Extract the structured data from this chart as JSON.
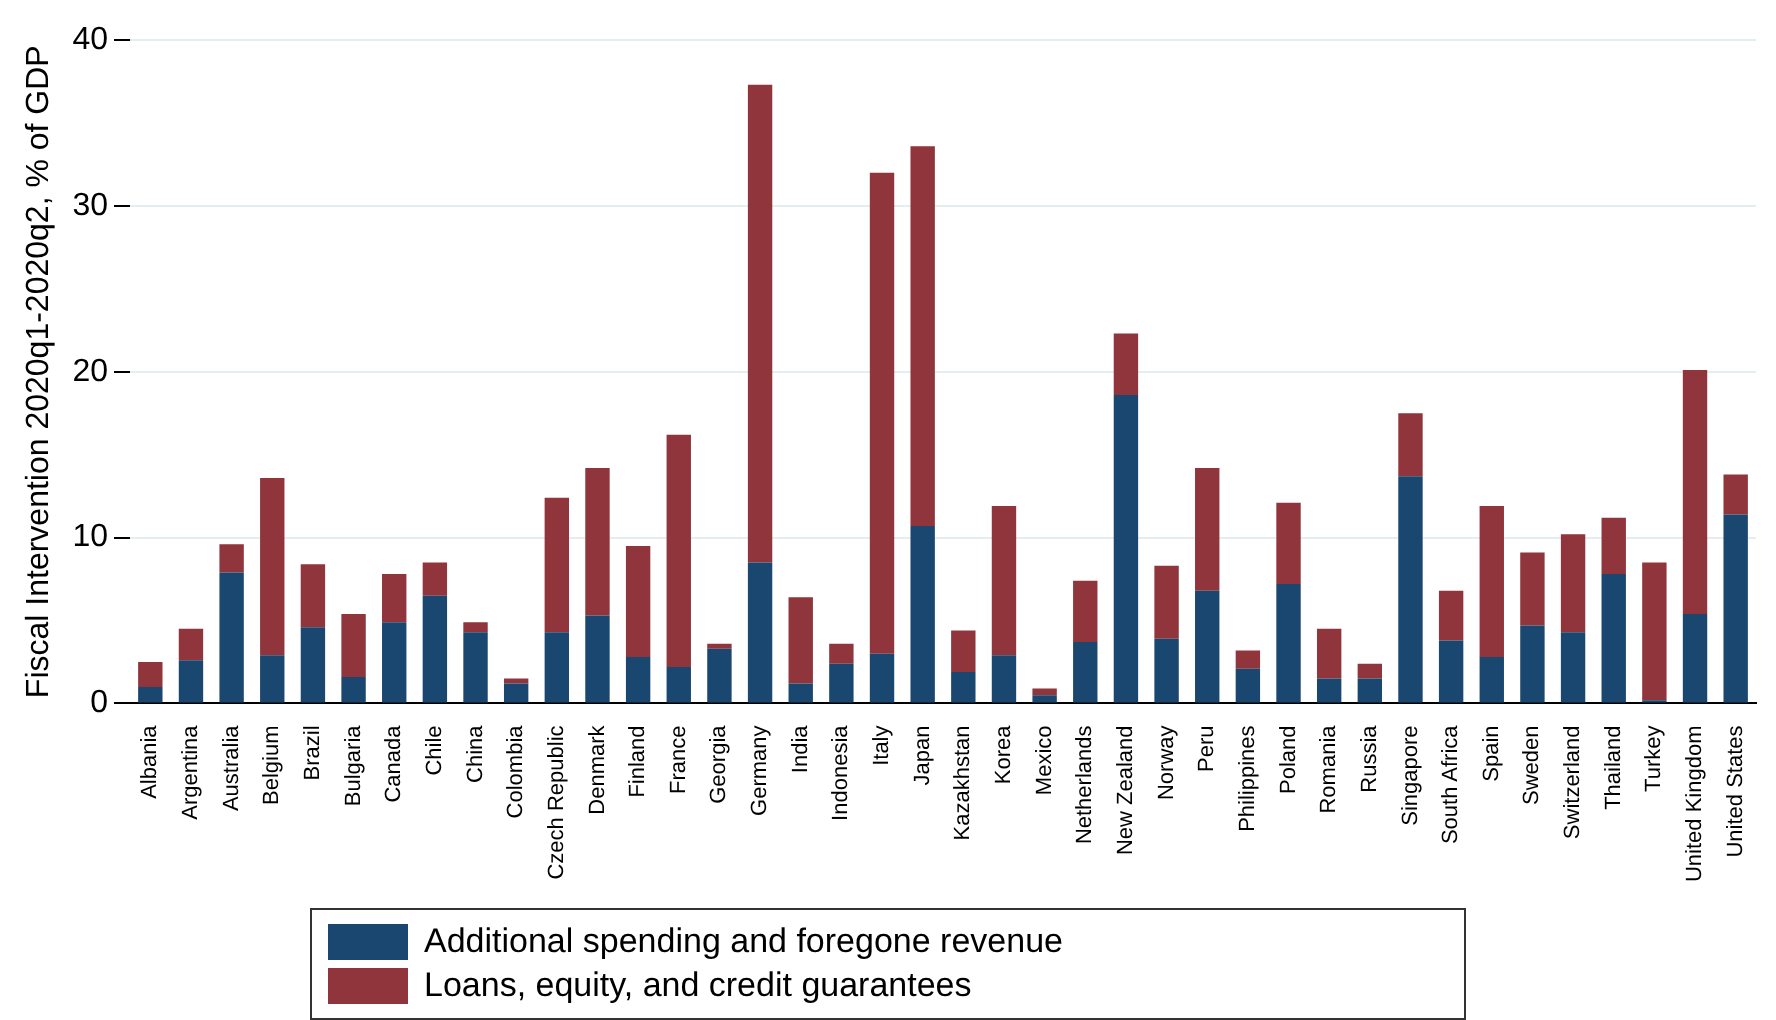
{
  "chart_data": {
    "type": "bar",
    "stacked": true,
    "ylabel": "Fiscal Intervention 2020q1-2020q2, % of GDP",
    "categories": [
      "Albania",
      "Argentina",
      "Australia",
      "Belgium",
      "Brazil",
      "Bulgaria",
      "Canada",
      "Chile",
      "China",
      "Colombia",
      "Czech Republic",
      "Denmark",
      "Finland",
      "France",
      "Georgia",
      "Germany",
      "India",
      "Indonesia",
      "Italy",
      "Japan",
      "Kazakhstan",
      "Korea",
      "Mexico",
      "Netherlands",
      "New Zealand",
      "Norway",
      "Peru",
      "Philippines",
      "Poland",
      "Romania",
      "Russia",
      "Singapore",
      "South Africa",
      "Spain",
      "Sweden",
      "Switzerland",
      "Thailand",
      "Turkey",
      "United Kingdom",
      "United States"
    ],
    "series": [
      {
        "name": "Additional spending and foregone revenue",
        "color": "#1a476f",
        "values": [
          1.0,
          2.6,
          7.9,
          2.9,
          4.6,
          1.6,
          4.9,
          6.5,
          4.3,
          1.2,
          4.3,
          5.3,
          2.8,
          2.2,
          3.3,
          8.5,
          1.2,
          2.4,
          3.0,
          10.7,
          1.9,
          2.9,
          0.5,
          3.7,
          18.6,
          3.9,
          6.8,
          2.1,
          7.2,
          1.5,
          1.5,
          13.7,
          3.8,
          2.8,
          4.7,
          4.3,
          7.8,
          0.2,
          5.4,
          11.4
        ]
      },
      {
        "name": "Loans, equity, and credit guarantees",
        "color": "#90353b",
        "values": [
          1.5,
          1.9,
          1.7,
          10.7,
          3.8,
          3.8,
          2.9,
          2.0,
          0.6,
          0.3,
          8.1,
          8.9,
          6.7,
          14.0,
          0.3,
          28.8,
          5.2,
          1.2,
          29.0,
          22.9,
          2.5,
          9.0,
          0.4,
          3.7,
          3.7,
          4.4,
          7.4,
          1.1,
          4.9,
          3.0,
          0.9,
          3.8,
          3.0,
          9.1,
          4.4,
          5.9,
          3.4,
          8.3,
          14.7,
          2.4
        ]
      }
    ],
    "ylim": [
      0,
      40
    ],
    "yticks": [
      0,
      10,
      20,
      30,
      40
    ],
    "grid": "y",
    "legend": "bottom"
  }
}
